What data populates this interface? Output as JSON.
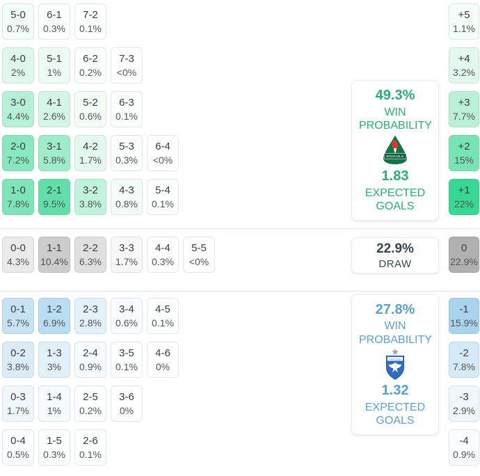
{
  "ui": {
    "background": "#ffffff",
    "separator_color": "#e7e7e7",
    "cell_score_text_color": "#3c3c3c",
    "cell_pct_text_color": "#555555"
  },
  "chart_data": {
    "type": "heatmap",
    "description": "Correct-score probability matrix with win/draw probabilities, expected goals and goal-difference margins",
    "units": "%",
    "color_scale": {
      "score_denominator": 12.5,
      "margin_denominator": 23,
      "draw_denominator": 16
    },
    "home": {
      "win_probability": "49.3%",
      "win_label": "WIN PROBABILITY",
      "expected_goals": "1.83",
      "expected_label": "EXPECTED GOALS",
      "team_name": "BREIÐABLIK",
      "accent": "#27ae75",
      "cell_base": "#2ed68c",
      "logo_colors": {
        "crest": "#10734a",
        "band": "#0b5737",
        "flame": "#e63427"
      },
      "score_rows": [
        [
          {
            "score": "5-0",
            "pct": "0.7%",
            "v": 0.7
          },
          {
            "score": "6-1",
            "pct": "0.3%",
            "v": 0.3
          },
          {
            "score": "7-2",
            "pct": "0.1%",
            "v": 0.1
          }
        ],
        [
          {
            "score": "4-0",
            "pct": "2%",
            "v": 2
          },
          {
            "score": "5-1",
            "pct": "1%",
            "v": 1
          },
          {
            "score": "6-2",
            "pct": "0.2%",
            "v": 0.2
          },
          {
            "score": "7-3",
            "pct": "<0%",
            "v": 0
          }
        ],
        [
          {
            "score": "3-0",
            "pct": "4.4%",
            "v": 4.4
          },
          {
            "score": "4-1",
            "pct": "2.6%",
            "v": 2.6
          },
          {
            "score": "5-2",
            "pct": "0.6%",
            "v": 0.6
          },
          {
            "score": "6-3",
            "pct": "0.1%",
            "v": 0.1
          }
        ],
        [
          {
            "score": "2-0",
            "pct": "7.2%",
            "v": 7.2
          },
          {
            "score": "3-1",
            "pct": "5.8%",
            "v": 5.8
          },
          {
            "score": "4-2",
            "pct": "1.7%",
            "v": 1.7
          },
          {
            "score": "5-3",
            "pct": "0.3%",
            "v": 0.3
          },
          {
            "score": "6-4",
            "pct": "<0%",
            "v": 0
          }
        ],
        [
          {
            "score": "1-0",
            "pct": "7.8%",
            "v": 7.8
          },
          {
            "score": "2-1",
            "pct": "9.5%",
            "v": 9.5
          },
          {
            "score": "3-2",
            "pct": "3.8%",
            "v": 3.8
          },
          {
            "score": "4-3",
            "pct": "0.8%",
            "v": 0.8
          },
          {
            "score": "5-4",
            "pct": "0.1%",
            "v": 0.1
          }
        ]
      ],
      "margins": [
        {
          "label": "+5",
          "pct": "1.1%",
          "v": 1.1
        },
        {
          "label": "+4",
          "pct": "3.2%",
          "v": 3.2
        },
        {
          "label": "+3",
          "pct": "7.7%",
          "v": 7.7
        },
        {
          "label": "+2",
          "pct": "15%",
          "v": 15
        },
        {
          "label": "+1",
          "pct": "22%",
          "v": 22
        }
      ]
    },
    "draw": {
      "probability": "22.9%",
      "label": "DRAW",
      "accent": "#37474f",
      "cell_base": "#b0b0b0",
      "scores": [
        {
          "score": "0-0",
          "pct": "4.3%",
          "v": 4.3
        },
        {
          "score": "1-1",
          "pct": "10.4%",
          "v": 10.4
        },
        {
          "score": "2-2",
          "pct": "6.3%",
          "v": 6.3
        },
        {
          "score": "3-3",
          "pct": "1.7%",
          "v": 1.7
        },
        {
          "score": "4-4",
          "pct": "0.3%",
          "v": 0.3
        },
        {
          "score": "5-5",
          "pct": "<0%",
          "v": 0
        }
      ],
      "margin": {
        "label": "0",
        "pct": "22.9%",
        "v": 22.9
      }
    },
    "away": {
      "win_probability": "27.8%",
      "win_label": "WIN PROBABILITY",
      "expected_goals": "1.32",
      "expected_label": "EXPECTED GOALS",
      "team_name": "KKS LECH",
      "accent": "#5b9fd4",
      "cell_base": "#81c1e7",
      "logo_colors": {
        "shield": "#2f6cc0",
        "star": "#a7a7a7",
        "eagle": "#ffffff"
      },
      "score_rows": [
        [
          {
            "score": "0-1",
            "pct": "5.7%",
            "v": 5.7
          },
          {
            "score": "1-2",
            "pct": "6.9%",
            "v": 6.9
          },
          {
            "score": "2-3",
            "pct": "2.8%",
            "v": 2.8
          },
          {
            "score": "3-4",
            "pct": "0.6%",
            "v": 0.6
          },
          {
            "score": "4-5",
            "pct": "0.1%",
            "v": 0.1
          }
        ],
        [
          {
            "score": "0-2",
            "pct": "3.8%",
            "v": 3.8
          },
          {
            "score": "1-3",
            "pct": "3%",
            "v": 3
          },
          {
            "score": "2-4",
            "pct": "0.9%",
            "v": 0.9
          },
          {
            "score": "3-5",
            "pct": "0.1%",
            "v": 0.1
          },
          {
            "score": "4-6",
            "pct": "0%",
            "v": 0
          }
        ],
        [
          {
            "score": "0-3",
            "pct": "1.7%",
            "v": 1.7
          },
          {
            "score": "1-4",
            "pct": "1%",
            "v": 1
          },
          {
            "score": "2-5",
            "pct": "0.2%",
            "v": 0.2
          },
          {
            "score": "3-6",
            "pct": "0%",
            "v": 0
          }
        ],
        [
          {
            "score": "0-4",
            "pct": "0.5%",
            "v": 0.5
          },
          {
            "score": "1-5",
            "pct": "0.3%",
            "v": 0.3
          },
          {
            "score": "2-6",
            "pct": "0.1%",
            "v": 0.1
          }
        ]
      ],
      "margins": [
        {
          "label": "-1",
          "pct": "15.9%",
          "v": 15.9
        },
        {
          "label": "-2",
          "pct": "7.8%",
          "v": 7.8
        },
        {
          "label": "-3",
          "pct": "2.9%",
          "v": 2.9
        },
        {
          "label": "-4",
          "pct": "0.9%",
          "v": 0.9
        }
      ]
    }
  }
}
